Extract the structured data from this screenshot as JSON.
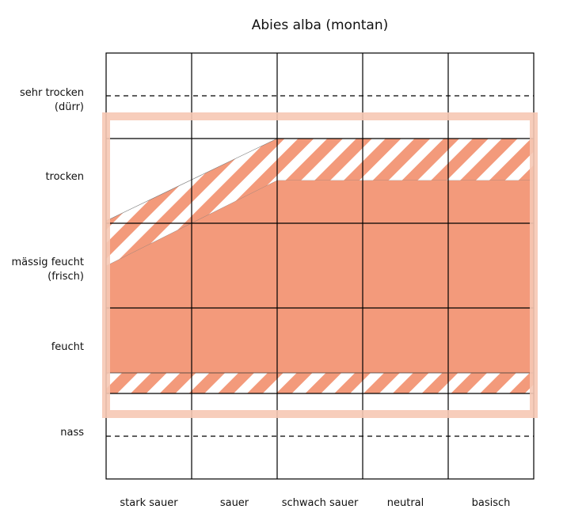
{
  "title": "Abies alba (montan)",
  "moisture_levels": [
    {
      "line1": "sehr trocken",
      "line2": "(dürr)"
    },
    {
      "line1": "trocken",
      "line2": ""
    },
    {
      "line1": "mässig feucht",
      "line2": "(frisch)"
    },
    {
      "line1": "feucht",
      "line2": ""
    },
    {
      "line1": "nass",
      "line2": ""
    }
  ],
  "acidity_levels": [
    "stark sauer",
    "sauer",
    "schwach sauer",
    "neutral",
    "basisch"
  ],
  "colors": {
    "core_range": "#f39a7b",
    "hatched_range": "#f39a7b",
    "outer_frame": "#f6c8b4",
    "grid": "#000000"
  }
}
